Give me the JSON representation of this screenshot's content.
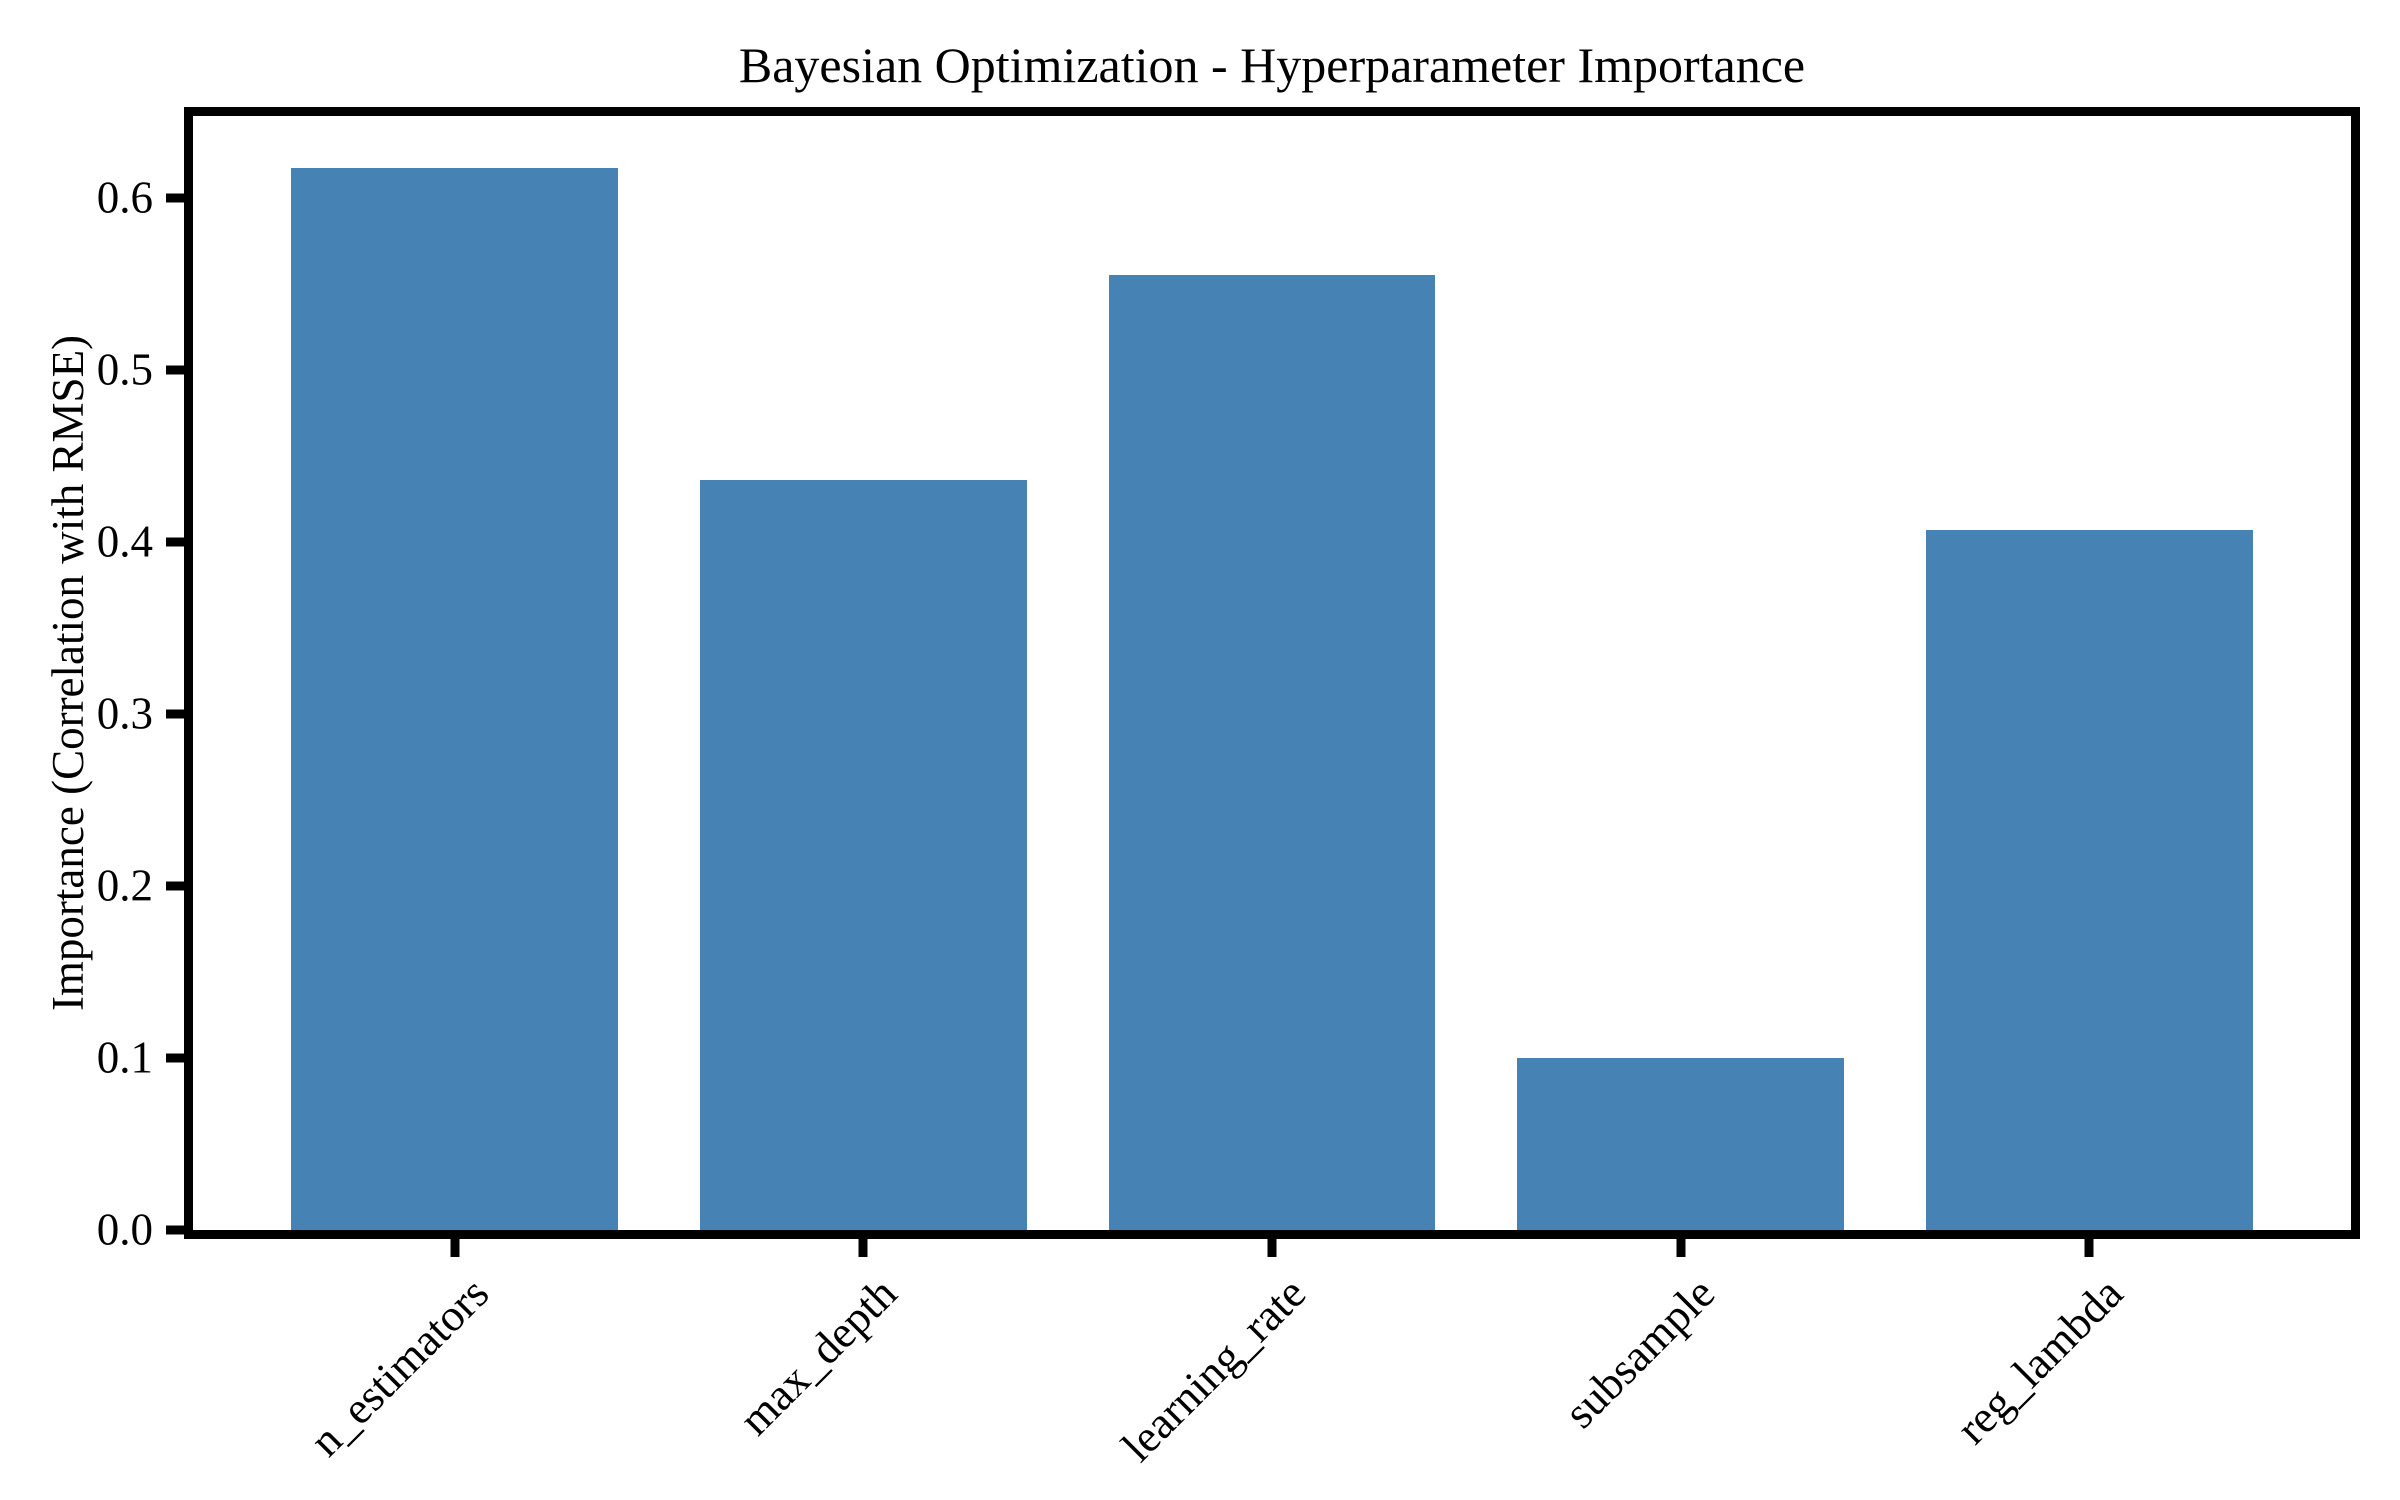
{
  "chart_data": {
    "type": "bar",
    "title": "Bayesian Optimization - Hyperparameter Importance",
    "categories": [
      "n_estimators",
      "max_depth",
      "learning_rate",
      "subsample",
      "reg_lambda"
    ],
    "values": [
      0.617,
      0.436,
      0.555,
      0.1,
      0.407
    ],
    "xlabel": "",
    "ylabel": "Importance (Correlation with RMSE)",
    "ylim": [
      0,
      0.6475
    ],
    "yticks": [
      0.0,
      0.1,
      0.2,
      0.3,
      0.4,
      0.5,
      0.6
    ],
    "ytick_labels": [
      "0.0",
      "0.1",
      "0.2",
      "0.3",
      "0.4",
      "0.5",
      "0.6"
    ],
    "xtick_rotation_deg": 45,
    "bar_width_fraction": 0.8,
    "x_axis_padding": 0.64,
    "bar_color": "#4682B4",
    "axis_color": "#000000",
    "background_color": "#FFFFFF",
    "grid": false,
    "legend": "none"
  }
}
